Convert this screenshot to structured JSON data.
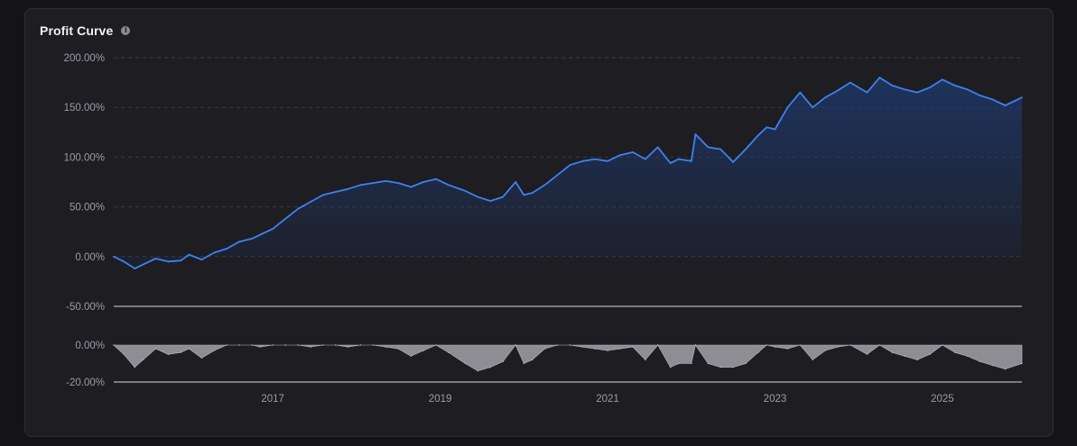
{
  "header": {
    "title": "Profit Curve",
    "info_icon": "info-icon"
  },
  "colors": {
    "background": "#141418",
    "card": "#1d1d22",
    "profit_line": "#3d82f0",
    "profit_fill": "#1f3a70",
    "drawdown_fill": "#9a9aa0",
    "grid": "#3a3a42",
    "axis_text": "#9c9ca4"
  },
  "chart_data": [
    {
      "type": "area",
      "name": "profit-curve",
      "ylim": [
        -50,
        200
      ],
      "yticks": [
        -50,
        0,
        50,
        100,
        150,
        200
      ],
      "ytick_labels": [
        "-50.00%",
        "0.00%",
        "50.00%",
        "100.00%",
        "150.00%",
        "200.00%"
      ],
      "grid": "dashed-horizontal",
      "xlim": [
        2015.1,
        2025.95
      ],
      "series": [
        {
          "x": [
            2015.1,
            2015.22,
            2015.35,
            2015.45,
            2015.6,
            2015.75,
            2015.9,
            2016.0,
            2016.15,
            2016.3,
            2016.45,
            2016.6,
            2016.75,
            2016.85,
            2017.0,
            2017.15,
            2017.3,
            2017.45,
            2017.6,
            2017.75,
            2017.9,
            2018.05,
            2018.2,
            2018.35,
            2018.5,
            2018.65,
            2018.8,
            2018.95,
            2019.1,
            2019.3,
            2019.45,
            2019.6,
            2019.75,
            2019.9,
            2020.0,
            2020.1,
            2020.25,
            2020.4,
            2020.55,
            2020.7,
            2020.85,
            2021.0,
            2021.15,
            2021.3,
            2021.45,
            2021.6,
            2021.75,
            2021.85,
            2022.0,
            2022.05,
            2022.2,
            2022.35,
            2022.5,
            2022.65,
            2022.8,
            2022.9,
            2023.0,
            2023.15,
            2023.3,
            2023.45,
            2023.6,
            2023.75,
            2023.9,
            2024.1,
            2024.25,
            2024.4,
            2024.55,
            2024.7,
            2024.85,
            2025.0,
            2025.15,
            2025.3,
            2025.45,
            2025.6,
            2025.75,
            2025.95
          ],
          "values": [
            0,
            -5,
            -12,
            -8,
            -2,
            -5,
            -4,
            2,
            -3,
            4,
            8,
            15,
            18,
            22,
            28,
            38,
            48,
            55,
            62,
            65,
            68,
            72,
            74,
            76,
            74,
            70,
            75,
            78,
            72,
            66,
            60,
            56,
            60,
            75,
            62,
            64,
            72,
            82,
            92,
            96,
            98,
            96,
            102,
            105,
            98,
            110,
            94,
            98,
            96,
            123,
            110,
            108,
            95,
            108,
            122,
            130,
            128,
            150,
            165,
            150,
            160,
            167,
            175,
            165,
            180,
            172,
            168,
            165,
            170,
            178,
            172,
            168,
            162,
            158,
            152,
            160
          ]
        }
      ]
    },
    {
      "type": "area",
      "name": "drawdown",
      "ylim": [
        -20,
        0
      ],
      "yticks": [
        0,
        -20
      ],
      "ytick_labels": [
        "0.00%",
        "-20.00%"
      ],
      "xlim": [
        2015.1,
        2025.95
      ],
      "xticks": [
        2017,
        2019,
        2021,
        2023,
        2025
      ],
      "xtick_labels": [
        "2017",
        "2019",
        "2021",
        "2023",
        "2025"
      ],
      "series": [
        {
          "x": [
            2015.1,
            2015.22,
            2015.35,
            2015.45,
            2015.6,
            2015.75,
            2015.9,
            2016.0,
            2016.15,
            2016.3,
            2016.45,
            2016.6,
            2016.75,
            2016.85,
            2017.0,
            2017.15,
            2017.3,
            2017.45,
            2017.6,
            2017.75,
            2017.9,
            2018.05,
            2018.2,
            2018.35,
            2018.5,
            2018.65,
            2018.8,
            2018.95,
            2019.1,
            2019.3,
            2019.45,
            2019.6,
            2019.75,
            2019.9,
            2020.0,
            2020.1,
            2020.25,
            2020.4,
            2020.55,
            2020.7,
            2020.85,
            2021.0,
            2021.15,
            2021.3,
            2021.45,
            2021.6,
            2021.75,
            2021.85,
            2022.0,
            2022.05,
            2022.2,
            2022.35,
            2022.5,
            2022.65,
            2022.8,
            2022.9,
            2023.0,
            2023.15,
            2023.3,
            2023.45,
            2023.6,
            2023.75,
            2023.9,
            2024.1,
            2024.25,
            2024.4,
            2024.55,
            2024.7,
            2024.85,
            2025.0,
            2025.15,
            2025.3,
            2025.45,
            2025.6,
            2025.75,
            2025.95
          ],
          "values": [
            0,
            -5,
            -12,
            -8,
            -2,
            -5,
            -4,
            -2,
            -7,
            -3,
            0,
            0,
            0,
            -1,
            0,
            0,
            0,
            -1,
            0,
            0,
            -1,
            0,
            0,
            -1,
            -2,
            -6,
            -3,
            0,
            -4,
            -10,
            -14,
            -12,
            -9,
            0,
            -10,
            -8,
            -2,
            0,
            0,
            -1,
            -2,
            -3,
            -2,
            -1,
            -8,
            0,
            -12,
            -10,
            -10,
            0,
            -10,
            -12,
            -12,
            -10,
            -4,
            0,
            -1,
            -2,
            0,
            -8,
            -3,
            -1,
            0,
            -5,
            0,
            -4,
            -6,
            -8,
            -5,
            0,
            -4,
            -6,
            -9,
            -11,
            -13,
            -10
          ]
        }
      ]
    }
  ]
}
